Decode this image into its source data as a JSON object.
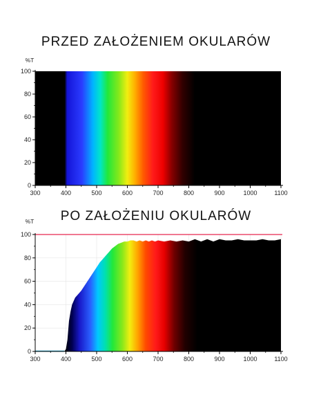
{
  "chart_data": [
    {
      "type": "area",
      "title": "PRZED ZAŁOŻENIEM OKULARÓW",
      "ylabel": "%T",
      "xlabel": "",
      "xlim": [
        300,
        1100
      ],
      "ylim": [
        0,
        100
      ],
      "x_ticks": [
        300,
        400,
        500,
        600,
        700,
        800,
        900,
        1000,
        1100
      ],
      "y_ticks": [
        0,
        20,
        40,
        60,
        80,
        100
      ],
      "grid": false,
      "fill": "visible spectrum gradient",
      "series": [
        {
          "x": [
            300,
            405,
            410,
            1100
          ],
          "y": [
            100,
            100,
            100,
            100
          ]
        }
      ]
    },
    {
      "type": "area",
      "title": "PO ZAŁOŻENIU OKULARÓW",
      "ylabel": "%T",
      "xlabel": "",
      "xlim": [
        300,
        1100
      ],
      "ylim": [
        0,
        100
      ],
      "x_ticks": [
        300,
        400,
        500,
        600,
        700,
        800,
        900,
        1000,
        1100
      ],
      "y_ticks": [
        0,
        20,
        40,
        60,
        80,
        100
      ],
      "grid": true,
      "reference_line": {
        "y": 100,
        "color": "#e8264f"
      },
      "fill": "visible spectrum gradient",
      "series": [
        {
          "x": [
            300,
            395,
            400,
            405,
            410,
            415,
            420,
            430,
            440,
            450,
            460,
            470,
            480,
            490,
            500,
            510,
            520,
            530,
            540,
            550,
            560,
            570,
            580,
            590,
            600,
            610,
            620,
            630,
            640,
            650,
            660,
            670,
            680,
            690,
            700,
            720,
            740,
            760,
            780,
            800,
            820,
            840,
            860,
            880,
            900,
            920,
            940,
            960,
            980,
            1000,
            1020,
            1040,
            1060,
            1080,
            1100
          ],
          "y": [
            0,
            0,
            2,
            10,
            26,
            34,
            40,
            46,
            49,
            52,
            56,
            60,
            64,
            68,
            72,
            76,
            79,
            82,
            85,
            88,
            90,
            92,
            93,
            94,
            94,
            95,
            95,
            94,
            95,
            94,
            95,
            94,
            95,
            94,
            95,
            94,
            95,
            94,
            95,
            94,
            96,
            94,
            96,
            94,
            96,
            95,
            95,
            96,
            95,
            95,
            95,
            96,
            95,
            95,
            96
          ]
        }
      ]
    }
  ]
}
